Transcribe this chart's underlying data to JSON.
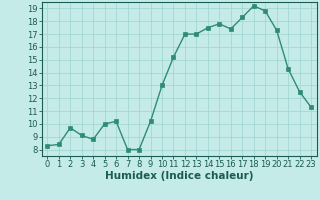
{
  "x": [
    0,
    1,
    2,
    3,
    4,
    5,
    6,
    7,
    8,
    9,
    10,
    11,
    12,
    13,
    14,
    15,
    16,
    17,
    18,
    19,
    20,
    21,
    22,
    23
  ],
  "y": [
    8.3,
    8.4,
    9.7,
    9.1,
    8.8,
    10.0,
    10.2,
    8.0,
    8.0,
    10.2,
    13.0,
    15.2,
    17.0,
    17.0,
    17.5,
    17.8,
    17.4,
    18.3,
    19.2,
    18.8,
    17.3,
    14.3,
    12.5,
    11.3
  ],
  "line_color": "#2e8b74",
  "marker_color": "#2e8b74",
  "bg_color": "#c5ebe8",
  "grid_color": "#9dd4d0",
  "xlabel": "Humidex (Indice chaleur)",
  "xlim": [
    -0.5,
    23.5
  ],
  "ylim": [
    7.5,
    19.5
  ],
  "yticks": [
    8,
    9,
    10,
    11,
    12,
    13,
    14,
    15,
    16,
    17,
    18,
    19
  ],
  "xticks": [
    0,
    1,
    2,
    3,
    4,
    5,
    6,
    7,
    8,
    9,
    10,
    11,
    12,
    13,
    14,
    15,
    16,
    17,
    18,
    19,
    20,
    21,
    22,
    23
  ],
  "font_color": "#1a5c52",
  "tick_fontsize": 6.0,
  "label_fontsize": 7.5
}
